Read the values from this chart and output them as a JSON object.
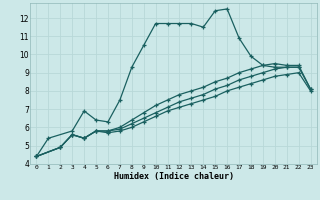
{
  "xlabel": "Humidex (Indice chaleur)",
  "ylabel": "",
  "background_color": "#cce8e8",
  "grid_color": "#b8d8d8",
  "line_color": "#1a6060",
  "xlim": [
    -0.5,
    23.5
  ],
  "ylim": [
    4,
    12.8
  ],
  "xticks": [
    0,
    1,
    2,
    3,
    4,
    5,
    6,
    7,
    8,
    9,
    10,
    11,
    12,
    13,
    14,
    15,
    16,
    17,
    18,
    19,
    20,
    21,
    22,
    23
  ],
  "yticks": [
    4,
    5,
    6,
    7,
    8,
    9,
    10,
    11,
    12
  ],
  "series": [
    {
      "x": [
        0,
        1,
        3,
        4,
        5,
        6,
        7,
        8,
        9,
        10,
        11,
        12,
        13,
        14,
        15,
        16,
        17,
        18,
        19,
        20,
        21,
        22
      ],
      "y": [
        4.4,
        5.4,
        5.8,
        6.9,
        6.4,
        6.3,
        7.5,
        9.3,
        10.5,
        11.7,
        11.7,
        11.7,
        11.7,
        11.5,
        12.4,
        12.5,
        10.9,
        9.9,
        9.4,
        9.3,
        9.3,
        9.3
      ]
    },
    {
      "x": [
        0,
        2,
        3,
        4,
        5,
        6,
        7,
        8,
        9,
        10,
        11,
        12,
        13,
        14,
        15,
        16,
        17,
        18,
        19,
        20,
        21,
        22,
        23
      ],
      "y": [
        4.4,
        4.9,
        5.6,
        5.4,
        5.8,
        5.8,
        6.0,
        6.4,
        6.8,
        7.2,
        7.5,
        7.8,
        8.0,
        8.2,
        8.5,
        8.7,
        9.0,
        9.2,
        9.4,
        9.5,
        9.4,
        9.4,
        8.1
      ]
    },
    {
      "x": [
        0,
        2,
        3,
        4,
        5,
        6,
        7,
        8,
        9,
        10,
        11,
        12,
        13,
        14,
        15,
        16,
        17,
        18,
        19,
        20,
        21,
        22,
        23
      ],
      "y": [
        4.4,
        4.9,
        5.6,
        5.4,
        5.8,
        5.8,
        5.9,
        6.2,
        6.5,
        6.8,
        7.1,
        7.4,
        7.6,
        7.8,
        8.1,
        8.3,
        8.6,
        8.8,
        9.0,
        9.2,
        9.3,
        9.3,
        8.1
      ]
    },
    {
      "x": [
        0,
        2,
        3,
        4,
        5,
        6,
        7,
        8,
        9,
        10,
        11,
        12,
        13,
        14,
        15,
        16,
        17,
        18,
        19,
        20,
        21,
        22,
        23
      ],
      "y": [
        4.4,
        4.9,
        5.6,
        5.4,
        5.8,
        5.7,
        5.8,
        6.0,
        6.3,
        6.6,
        6.9,
        7.1,
        7.3,
        7.5,
        7.7,
        8.0,
        8.2,
        8.4,
        8.6,
        8.8,
        8.9,
        9.0,
        8.0
      ]
    }
  ]
}
